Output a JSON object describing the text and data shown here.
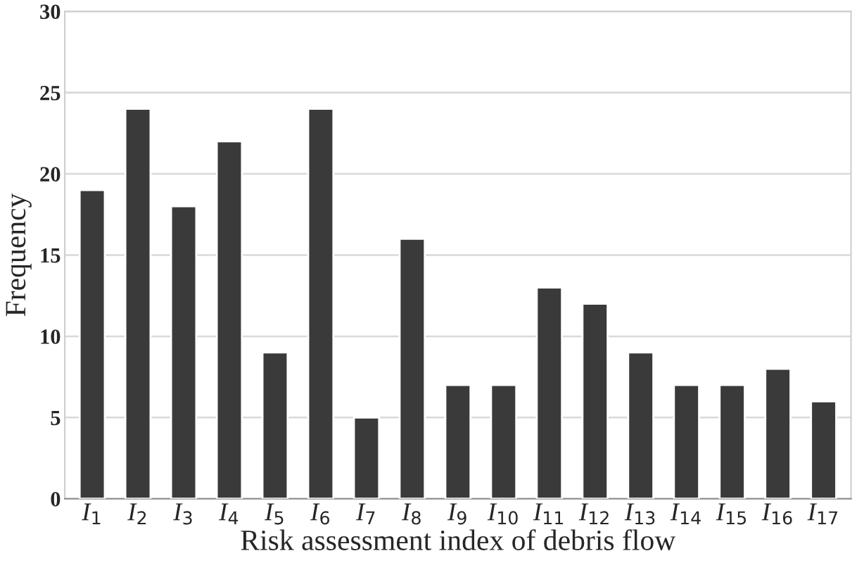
{
  "chart_data": {
    "type": "bar",
    "xlabel": "Risk assessment index of debris flow",
    "ylabel": "Frequency",
    "categories": [
      "I$_{1}$",
      "I$_{2}$",
      "I$_{3}$",
      "I$_{4}$",
      "I$_{5}$",
      "I$_{6}$",
      "I$_{7}$",
      "I$_{8}$",
      "I$_{9}$",
      "I$_{10}$",
      "I$_{11}$",
      "I$_{12}$",
      "I$_{13}$",
      "I$_{14}$",
      "I$_{15}$",
      "I$_{16}$",
      "I$_{17}$"
    ],
    "values": [
      19,
      24,
      18,
      22,
      9,
      24,
      5,
      16,
      7,
      7,
      13,
      12,
      9,
      7,
      7,
      8,
      6
    ],
    "color": "#3a3a3a",
    "ylim": [
      0,
      30
    ],
    "yticks": [
      0,
      5,
      10,
      15,
      20,
      25,
      30
    ],
    "grid": "y"
  }
}
